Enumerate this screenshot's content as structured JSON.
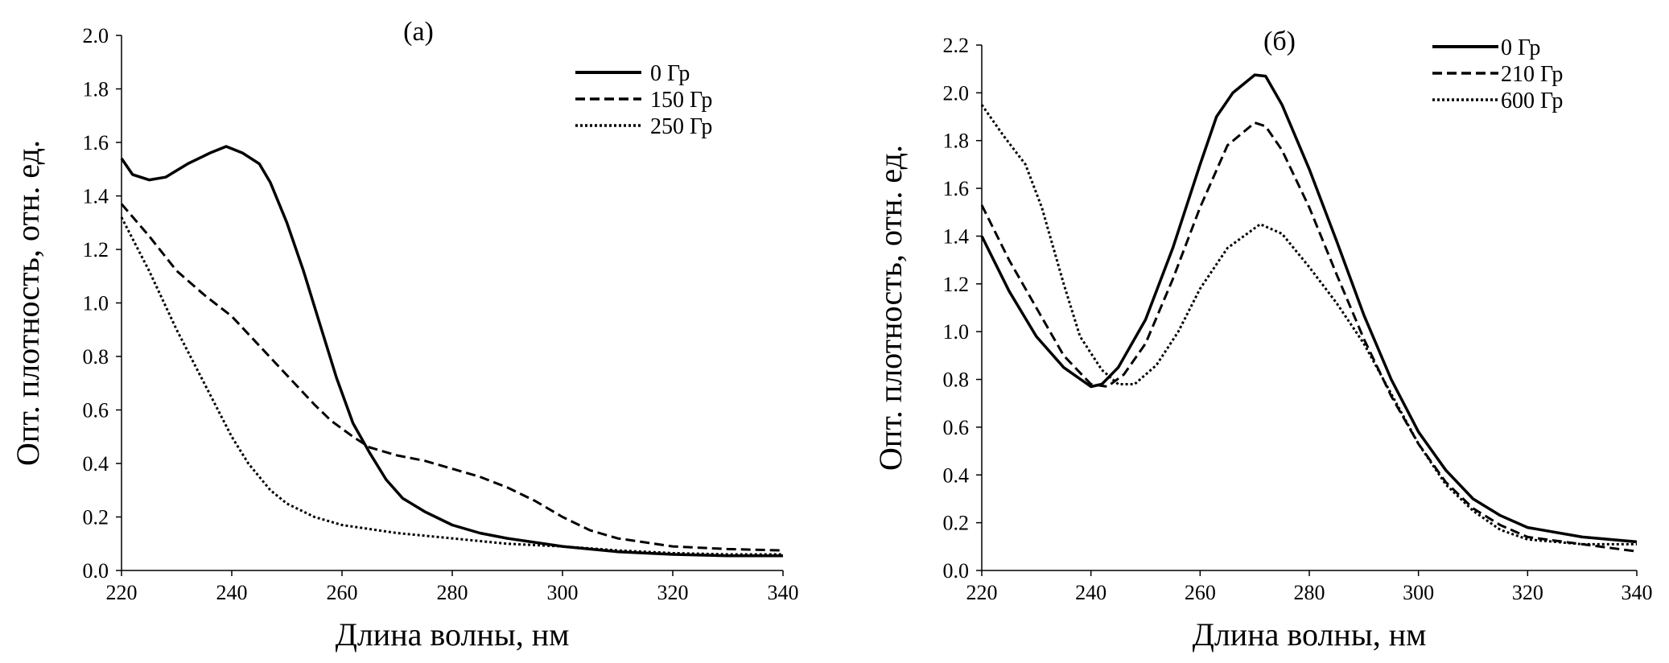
{
  "chart_data": [
    {
      "type": "line",
      "title": "(а)",
      "xlabel": "Длина волны, нм",
      "ylabel": "Опт. плотность, отн. ед.",
      "xlim": [
        220,
        340
      ],
      "ylim": [
        0,
        2.0
      ],
      "xticks": [
        "220",
        "240",
        "260",
        "280",
        "300",
        "320",
        "340"
      ],
      "yticks": [
        "0.0",
        "0.2",
        "0.4",
        "0.6",
        "0.8",
        "1.0",
        "1.2",
        "1.4",
        "1.6",
        "1.8",
        "2.0"
      ],
      "grid": false,
      "legend_position": "top-right",
      "series": [
        {
          "name": "0 Гр",
          "style": "solid",
          "x": [
            220,
            222,
            225,
            228,
            232,
            236,
            239,
            242,
            245,
            247,
            250,
            253,
            256,
            259,
            262,
            265,
            268,
            271,
            275,
            280,
            285,
            290,
            300,
            310,
            320,
            330,
            340
          ],
          "y": [
            1.54,
            1.48,
            1.46,
            1.47,
            1.52,
            1.56,
            1.585,
            1.56,
            1.52,
            1.45,
            1.3,
            1.12,
            0.92,
            0.72,
            0.55,
            0.44,
            0.34,
            0.27,
            0.22,
            0.17,
            0.14,
            0.12,
            0.09,
            0.07,
            0.06,
            0.055,
            0.055
          ]
        },
        {
          "name": "150 Гр",
          "style": "dashed",
          "x": [
            220,
            225,
            230,
            235,
            240,
            245,
            250,
            255,
            258,
            262,
            265,
            270,
            275,
            280,
            285,
            290,
            295,
            300,
            305,
            310,
            320,
            330,
            340
          ],
          "y": [
            1.37,
            1.25,
            1.12,
            1.03,
            0.95,
            0.84,
            0.73,
            0.62,
            0.56,
            0.5,
            0.46,
            0.43,
            0.41,
            0.38,
            0.35,
            0.31,
            0.26,
            0.2,
            0.15,
            0.12,
            0.09,
            0.08,
            0.075
          ]
        },
        {
          "name": "250 Гр",
          "style": "dotted",
          "x": [
            220,
            225,
            230,
            235,
            240,
            243,
            247,
            250,
            255,
            260,
            270,
            280,
            290,
            300,
            310,
            320,
            330,
            340
          ],
          "y": [
            1.32,
            1.12,
            0.9,
            0.7,
            0.5,
            0.4,
            0.3,
            0.25,
            0.2,
            0.17,
            0.14,
            0.12,
            0.1,
            0.09,
            0.075,
            0.065,
            0.06,
            0.06
          ]
        }
      ]
    },
    {
      "type": "line",
      "title": "(б)",
      "xlabel": "Длина волны, нм",
      "ylabel": "Опт. плотность, отн. ед.",
      "xlim": [
        220,
        340
      ],
      "ylim": [
        0,
        2.2
      ],
      "xticks": [
        "220",
        "240",
        "260",
        "280",
        "300",
        "320",
        "340"
      ],
      "yticks": [
        "0.0",
        "0.2",
        "0.4",
        "0.6",
        "0.8",
        "1.0",
        "1.2",
        "1.4",
        "1.6",
        "1.8",
        "2.0",
        "2.2"
      ],
      "grid": false,
      "legend_position": "top-right",
      "series": [
        {
          "name": "0 Гр",
          "style": "solid",
          "x": [
            220,
            225,
            230,
            235,
            240,
            242,
            245,
            250,
            255,
            260,
            263,
            266,
            270,
            272,
            275,
            280,
            285,
            290,
            295,
            300,
            305,
            310,
            315,
            320,
            330,
            340
          ],
          "y": [
            1.4,
            1.17,
            0.98,
            0.85,
            0.77,
            0.78,
            0.85,
            1.05,
            1.35,
            1.7,
            1.9,
            2.0,
            2.075,
            2.07,
            1.95,
            1.68,
            1.38,
            1.07,
            0.8,
            0.58,
            0.42,
            0.3,
            0.23,
            0.18,
            0.14,
            0.12
          ]
        },
        {
          "name": "210 Гр",
          "style": "dashed",
          "x": [
            220,
            225,
            230,
            235,
            240,
            243,
            246,
            250,
            255,
            260,
            265,
            270,
            272,
            275,
            280,
            285,
            290,
            295,
            300,
            305,
            310,
            315,
            320,
            330,
            340
          ],
          "y": [
            1.53,
            1.3,
            1.1,
            0.9,
            0.78,
            0.77,
            0.82,
            0.95,
            1.22,
            1.52,
            1.78,
            1.875,
            1.86,
            1.76,
            1.52,
            1.24,
            0.97,
            0.73,
            0.53,
            0.37,
            0.26,
            0.19,
            0.14,
            0.11,
            0.08
          ]
        },
        {
          "name": "600 Гр",
          "style": "dotted",
          "x": [
            220,
            224,
            228,
            231,
            235,
            238,
            242,
            245,
            248,
            252,
            256,
            260,
            265,
            271,
            275,
            280,
            285,
            290,
            295,
            300,
            305,
            310,
            315,
            320,
            330,
            340
          ],
          "y": [
            1.95,
            1.82,
            1.7,
            1.52,
            1.2,
            0.98,
            0.84,
            0.78,
            0.78,
            0.86,
            1.0,
            1.18,
            1.35,
            1.45,
            1.41,
            1.27,
            1.12,
            0.95,
            0.74,
            0.53,
            0.36,
            0.25,
            0.17,
            0.13,
            0.11,
            0.11
          ]
        }
      ]
    }
  ]
}
